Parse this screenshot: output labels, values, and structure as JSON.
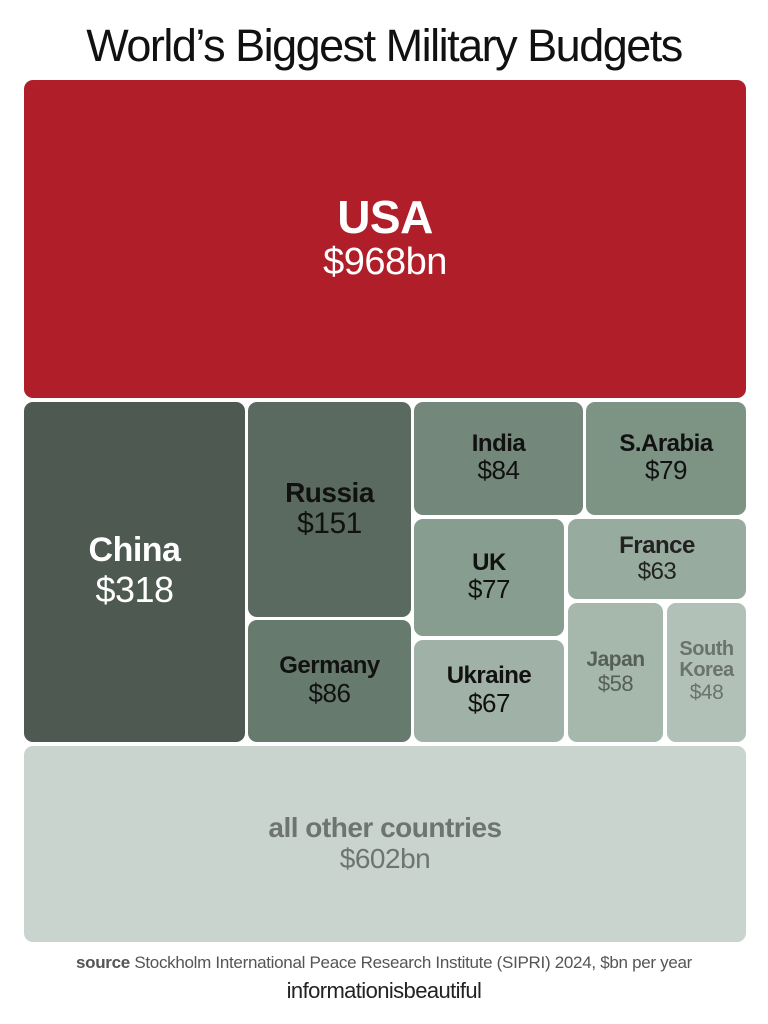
{
  "title": "World’s Biggest Military Budgets",
  "chart_data": {
    "type": "treemap",
    "title": "World’s Biggest Military Budgets",
    "unit": "$bn per year",
    "items": [
      {
        "name": "USA",
        "label": "$968bn",
        "value": 968,
        "color": "#b01f29",
        "text_color": "#ffffff"
      },
      {
        "name": "China",
        "label": "$318",
        "value": 318,
        "color": "#4e5a51",
        "text_color": "#ffffff"
      },
      {
        "name": "Russia",
        "label": "$151",
        "value": 151,
        "color": "#5a6a60",
        "text_color": "#111111"
      },
      {
        "name": "Germany",
        "label": "$86",
        "value": 86,
        "color": "#667a6e",
        "text_color": "#111111"
      },
      {
        "name": "India",
        "label": "$84",
        "value": 84,
        "color": "#73877a",
        "text_color": "#111111"
      },
      {
        "name": "S.Arabia",
        "label": "$79",
        "value": 79,
        "color": "#7d9384",
        "text_color": "#111111"
      },
      {
        "name": "UK",
        "label": "$77",
        "value": 77,
        "color": "#879d8f",
        "text_color": "#111111"
      },
      {
        "name": "France",
        "label": "$63",
        "value": 63,
        "color": "#98ab9f",
        "text_color": "#222222"
      },
      {
        "name": "Ukraine",
        "label": "$67",
        "value": 67,
        "color": "#a0b2a7",
        "text_color": "#111111"
      },
      {
        "name": "Japan",
        "label": "$58",
        "value": 58,
        "color": "#a6b7ac",
        "text_color": "#555f58"
      },
      {
        "name": "South Korea",
        "label": "$48",
        "value": 48,
        "color": "#b2c1b8",
        "text_color": "#6a736d"
      },
      {
        "name": "all other countries",
        "label": "$602bn",
        "value": 602,
        "color": "#c9d4ce",
        "text_color": "#6e7571"
      }
    ]
  },
  "footer": {
    "source_label": "source",
    "source_text": "Stockholm International Peace Research Institute (SIPRI) 2024, $bn per year",
    "brand": "informationisbeautiful"
  }
}
